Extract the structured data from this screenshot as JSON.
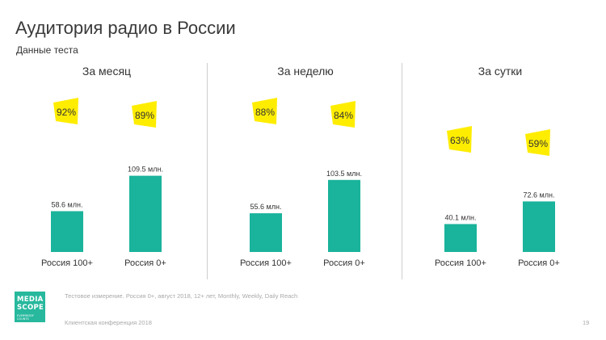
{
  "title": "Аудитория радио в России",
  "subtitle": "Данные теста",
  "chart_data": [
    {
      "type": "bar",
      "title": "За месяц",
      "categories": [
        "Россия 100+",
        "Россия 0+"
      ],
      "values": [
        58.6,
        109.5
      ],
      "value_labels": [
        "58.6 млн.",
        "109.5 млн."
      ],
      "percent_labels": [
        "92%",
        "89%"
      ],
      "bar_color": "#1ab39b",
      "badge_color": "#ffed00"
    },
    {
      "type": "bar",
      "title": "За неделю",
      "categories": [
        "Россия 100+",
        "Россия 0+"
      ],
      "values": [
        55.6,
        103.5
      ],
      "value_labels": [
        "55.6 млн.",
        "103.5 млн."
      ],
      "percent_labels": [
        "88%",
        "84%"
      ],
      "bar_color": "#1ab39b",
      "badge_color": "#ffed00"
    },
    {
      "type": "bar",
      "title": "За сутки",
      "categories": [
        "Россия 100+",
        "Россия 0+"
      ],
      "values": [
        40.1,
        72.6
      ],
      "value_labels": [
        "40.1 млн.",
        "72.6 млн."
      ],
      "percent_labels": [
        "63%",
        "59%"
      ],
      "bar_color": "#1ab39b",
      "badge_color": "#ffed00"
    }
  ],
  "logo": {
    "lines": [
      "MEDIA",
      "SCOPE"
    ],
    "tagline": "EVERYBODY COUNTS",
    "color": "#27b89d"
  },
  "footnote": "Тестовое измерение. Россия 0+, август 2018, 12+ лет, Monthly, Weekly, Daily Reach",
  "footer": "Клиентская конференция 2018",
  "page_number": "19"
}
